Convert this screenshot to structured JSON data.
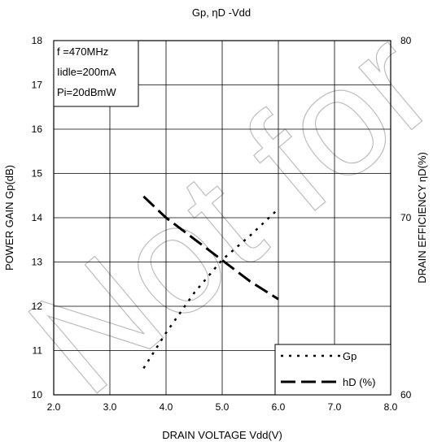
{
  "chart_data": {
    "type": "line",
    "title": "Gp, ηD -Vdd",
    "xlabel": "DRAIN VOLTAGE Vdd(V)",
    "ylabel_left": "POWER GAIN Gp(dB)",
    "ylabel_right": "DRAIN EFFICIENCY ηD(%)",
    "xlim": [
      2.0,
      8.0
    ],
    "ylim_left": [
      10,
      18
    ],
    "ylim_right": [
      60,
      80
    ],
    "x_ticks": [
      2.0,
      3.0,
      4.0,
      5.0,
      6.0,
      7.0,
      8.0
    ],
    "x_tick_labels": [
      "2.0",
      "3.0",
      "4.0",
      "5.0",
      "6.0",
      "7.0",
      "8.0"
    ],
    "y_left_ticks": [
      10,
      11,
      12,
      13,
      14,
      15,
      16,
      17,
      18
    ],
    "y_left_tick_labels": [
      "10",
      "11",
      "12",
      "13",
      "14",
      "15",
      "16",
      "17",
      "18"
    ],
    "y_right_ticks": [
      60,
      70,
      80
    ],
    "y_right_tick_labels": [
      "60",
      "70",
      "80"
    ],
    "grid": true,
    "conditions": [
      "f =470MHz",
      "Iidle=200mA",
      "Pi=20dBmW"
    ],
    "legend_position": "bottom-right",
    "watermark": "Not for",
    "series": [
      {
        "name": "Gp",
        "axis": "left",
        "style": "dotted",
        "x": [
          3.6,
          4.0,
          4.5,
          5.0,
          5.5,
          6.0
        ],
        "values": [
          10.6,
          11.4,
          12.3,
          13.05,
          13.6,
          14.2
        ]
      },
      {
        "name": "hD (%)",
        "axis": "right",
        "style": "dashed",
        "x": [
          3.6,
          4.0,
          4.5,
          5.0,
          5.5,
          6.0
        ],
        "values": [
          71.2,
          70.0,
          68.8,
          67.6,
          66.4,
          65.4
        ]
      }
    ]
  }
}
